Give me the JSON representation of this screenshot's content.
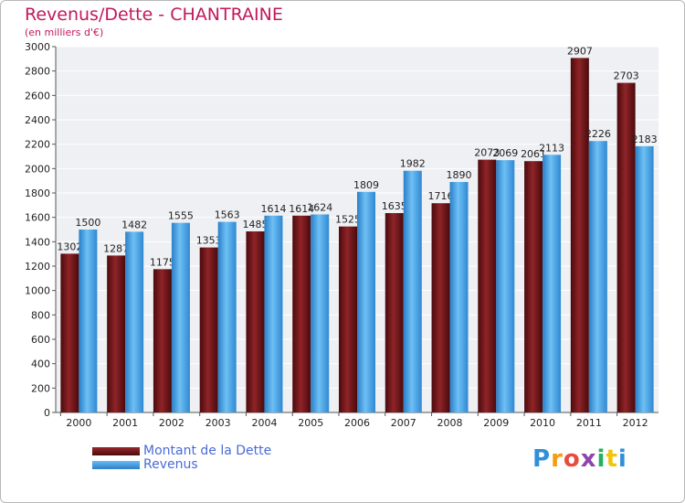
{
  "header": {
    "title": "Revenus/Dette - CHANTRAINE",
    "subtitle": "(en milliers d'€)"
  },
  "legend": {
    "items": [
      {
        "label": "Montant de la Dette",
        "color": "#7b1a1e"
      },
      {
        "label": "Revenus",
        "color": "#3a9be2"
      }
    ]
  },
  "logo": {
    "letters": [
      "P",
      "r",
      "o",
      "x",
      "i",
      "t",
      "i"
    ],
    "colors": [
      "#2f8fd8",
      "#f39c12",
      "#e74c3c",
      "#8e44ad",
      "#27ae60",
      "#f1c40f",
      "#2f8fd8"
    ]
  },
  "chart_data": {
    "type": "bar",
    "title": "Revenus/Dette - CHANTRAINE",
    "ylabel": "(en milliers d'€)",
    "xlabel": "",
    "ylim": [
      0,
      3000
    ],
    "yticks": [
      0,
      200,
      400,
      600,
      800,
      1000,
      1200,
      1400,
      1600,
      1800,
      2000,
      2200,
      2400,
      2600,
      2800,
      3000
    ],
    "grid": true,
    "categories": [
      "2000",
      "2001",
      "2002",
      "2003",
      "2004",
      "2005",
      "2006",
      "2007",
      "2008",
      "2009",
      "2010",
      "2011",
      "2012"
    ],
    "series": [
      {
        "name": "Montant de la Dette",
        "color": "#7b1a1e",
        "values": [
          1302,
          1287,
          1175,
          1353,
          1485,
          1614,
          1525,
          1635,
          1716,
          2073,
          2061,
          2907,
          2703
        ]
      },
      {
        "name": "Revenus",
        "color": "#3a9be2",
        "values": [
          1500,
          1482,
          1555,
          1563,
          1614,
          1624,
          1809,
          1982,
          1890,
          2069,
          2113,
          2226,
          2183
        ]
      }
    ]
  }
}
